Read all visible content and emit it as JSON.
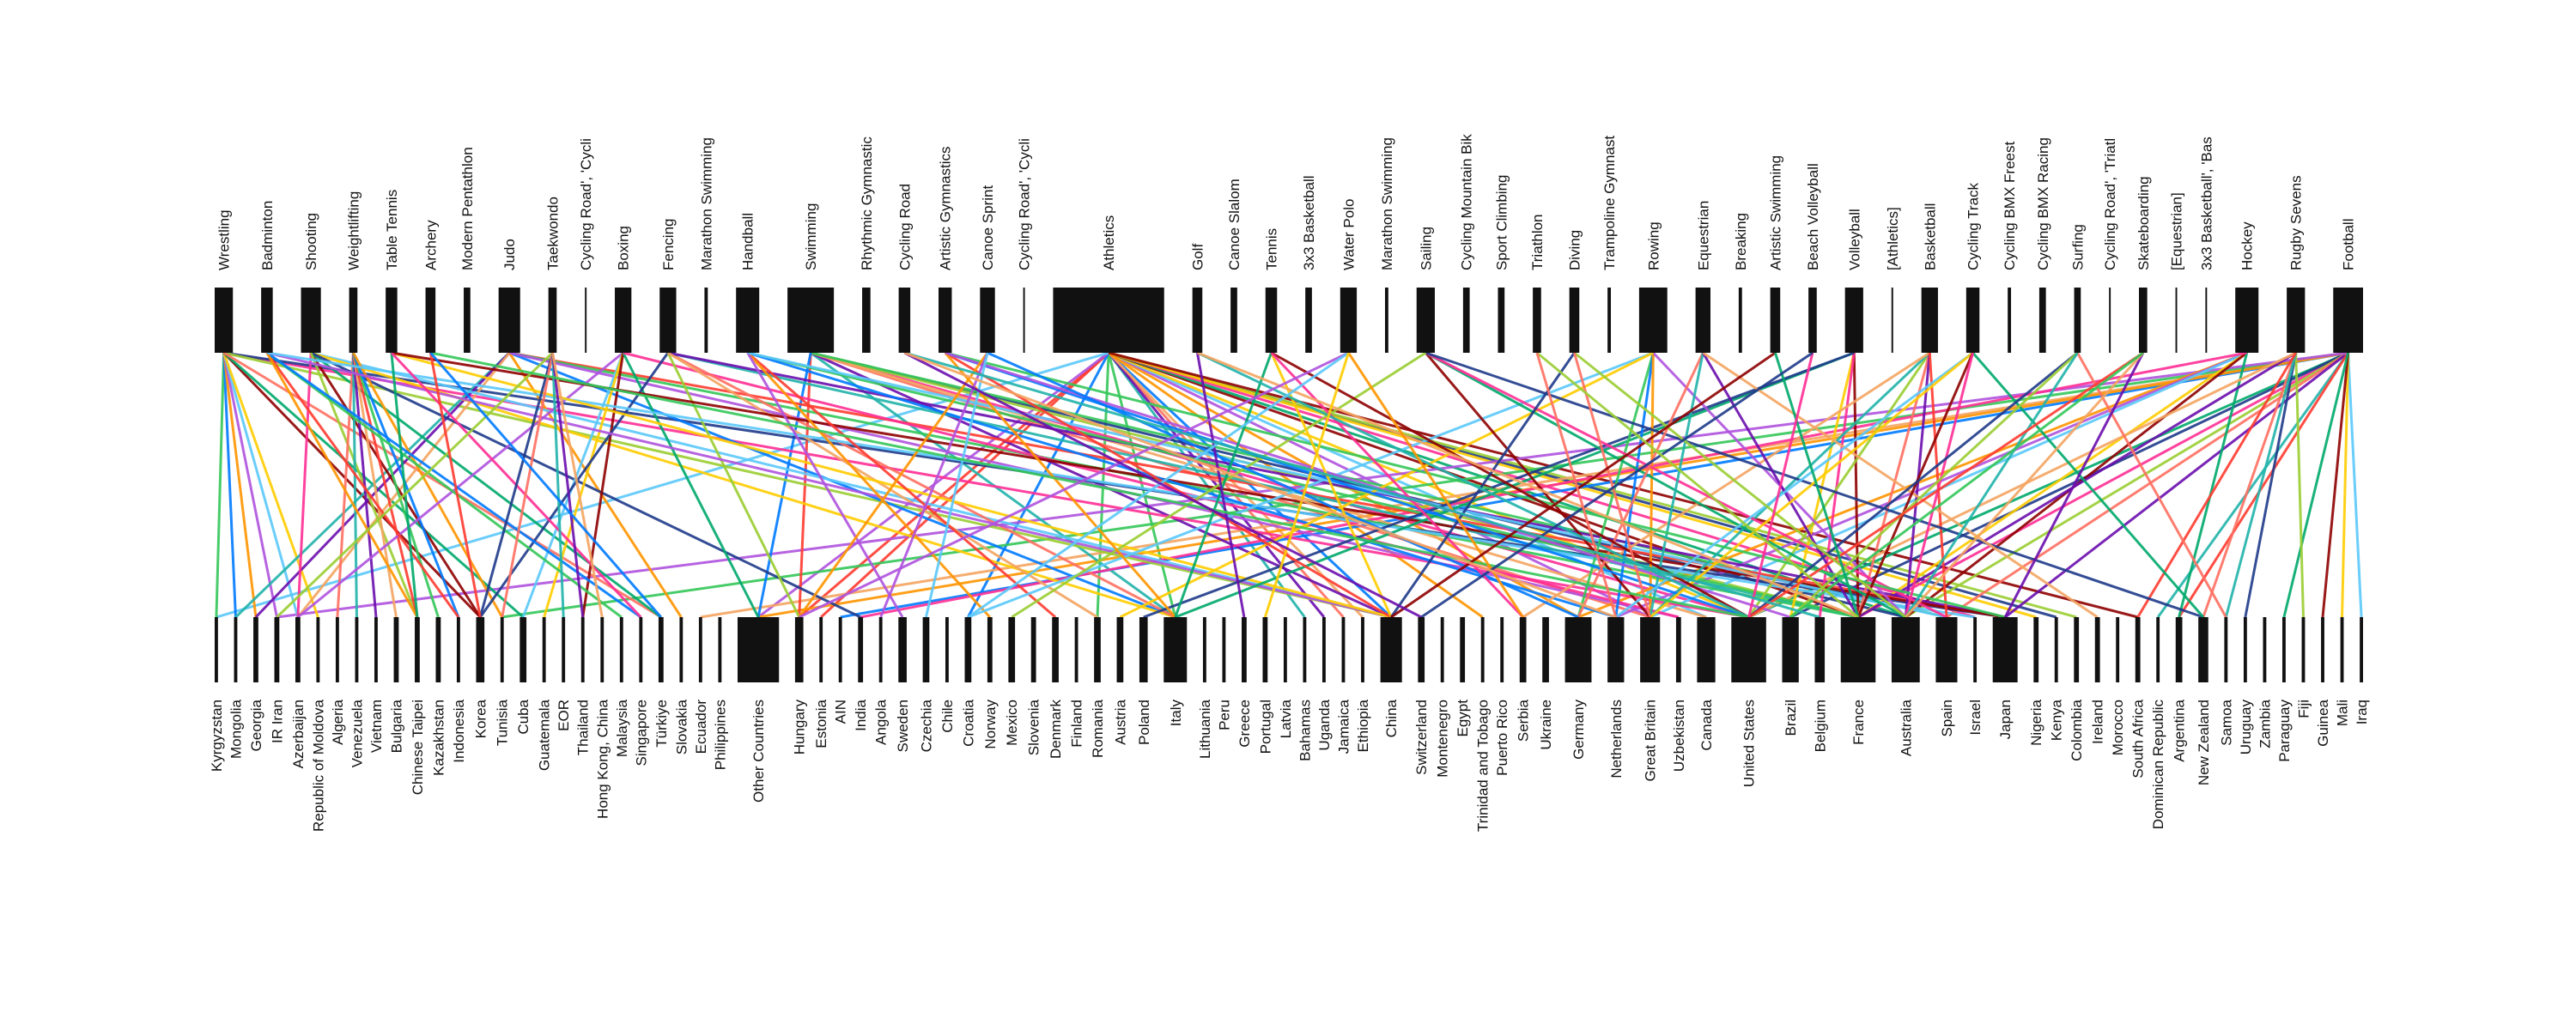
{
  "top_nodes": [
    {
      "label": "Wrestling",
      "size": 11
    },
    {
      "label": "Badminton",
      "size": 7
    },
    {
      "label": "Shooting",
      "size": 12
    },
    {
      "label": "Weightlifting",
      "size": 5
    },
    {
      "label": "Table Tennis",
      "size": 7
    },
    {
      "label": "Archery",
      "size": 6
    },
    {
      "label": "Modern Pentathlon",
      "size": 4
    },
    {
      "label": "Judo",
      "size": 13
    },
    {
      "label": "Taekwondo",
      "size": 5
    },
    {
      "label": "Cycling Road', 'Cycli",
      "size": 1
    },
    {
      "label": "Boxing",
      "size": 10
    },
    {
      "label": "Fencing",
      "size": 10
    },
    {
      "label": "Marathon Swimming",
      "size": 2
    },
    {
      "label": "Handball",
      "size": 14
    },
    {
      "label": "Swimming",
      "size": 28
    },
    {
      "label": "Rhythmic Gymnastic",
      "size": 5
    },
    {
      "label": "Cycling Road",
      "size": 7
    },
    {
      "label": "Artistic Gymnastics",
      "size": 8
    },
    {
      "label": "Canoe Sprint",
      "size": 9
    },
    {
      "label": "Cycling Road', 'Cycli",
      "size": 1
    },
    {
      "label": "Athletics",
      "size": 67
    },
    {
      "label": "Golf",
      "size": 6
    },
    {
      "label": "Canoe Slalom",
      "size": 4
    },
    {
      "label": "Tennis",
      "size": 7
    },
    {
      "label": "3x3 Basketball",
      "size": 4
    },
    {
      "label": "Water Polo",
      "size": 10
    },
    {
      "label": "Marathon Swimming",
      "size": 2
    },
    {
      "label": "Sailing",
      "size": 11
    },
    {
      "label": "Cycling Mountain Bik",
      "size": 4
    },
    {
      "label": "Sport Climbing",
      "size": 4
    },
    {
      "label": "Triathlon",
      "size": 5
    },
    {
      "label": "Diving",
      "size": 6
    },
    {
      "label": "Trampoline Gymnast",
      "size": 2
    },
    {
      "label": "Rowing",
      "size": 17
    },
    {
      "label": "Equestrian",
      "size": 9
    },
    {
      "label": "Breaking",
      "size": 2
    },
    {
      "label": "Artistic Swimming",
      "size": 6
    },
    {
      "label": "Beach Volleyball",
      "size": 5
    },
    {
      "label": "Volleyball",
      "size": 11
    },
    {
      "label": "[Athletics]",
      "size": 1
    },
    {
      "label": "Basketball",
      "size": 10
    },
    {
      "label": "Cycling Track",
      "size": 8
    },
    {
      "label": "Cycling BMX Freest",
      "size": 2
    },
    {
      "label": "Cycling BMX Racing",
      "size": 4
    },
    {
      "label": "Surfing",
      "size": 4
    },
    {
      "label": "Cycling Road', 'Triatl",
      "size": 1
    },
    {
      "label": "Skateboarding",
      "size": 5
    },
    {
      "label": "[Equestrian]",
      "size": 1
    },
    {
      "label": "3x3 Basketball', 'Bas",
      "size": 1
    },
    {
      "label": "Hockey",
      "size": 14
    },
    {
      "label": "Rugby Sevens",
      "size": 11
    },
    {
      "label": "Football",
      "size": 18
    }
  ],
  "bottom_nodes": [
    {
      "label": "Kyrgyzstan",
      "size": 2
    },
    {
      "label": "Mongolia",
      "size": 2
    },
    {
      "label": "Georgia",
      "size": 3
    },
    {
      "label": "IR Iran",
      "size": 3
    },
    {
      "label": "Azerbaijan",
      "size": 3
    },
    {
      "label": "Republic of Moldova",
      "size": 2
    },
    {
      "label": "Algeria",
      "size": 2
    },
    {
      "label": "Venezuela",
      "size": 2
    },
    {
      "label": "Vietnam",
      "size": 2
    },
    {
      "label": "Bulgaria",
      "size": 3
    },
    {
      "label": "Chinese Taipei",
      "size": 3
    },
    {
      "label": "Kazakhstan",
      "size": 3
    },
    {
      "label": "Indonesia",
      "size": 2
    },
    {
      "label": "Korea",
      "size": 5
    },
    {
      "label": "Tunisia",
      "size": 2
    },
    {
      "label": "Cuba",
      "size": 4
    },
    {
      "label": "Guatemala",
      "size": 2
    },
    {
      "label": "EOR",
      "size": 2
    },
    {
      "label": "Thailand",
      "size": 2
    },
    {
      "label": "Hong Kong, China",
      "size": 2
    },
    {
      "label": "Malaysia",
      "size": 2
    },
    {
      "label": "Singapore",
      "size": 2
    },
    {
      "label": "Türkiye",
      "size": 3
    },
    {
      "label": "Slovakia",
      "size": 2
    },
    {
      "label": "Ecuador",
      "size": 2
    },
    {
      "label": "Philippines",
      "size": 2
    },
    {
      "label": "Other Countries",
      "size": 25
    },
    {
      "label": "Hungary",
      "size": 5
    },
    {
      "label": "Estonia",
      "size": 2
    },
    {
      "label": "AIN",
      "size": 2
    },
    {
      "label": "India",
      "size": 3
    },
    {
      "label": "Angola",
      "size": 2
    },
    {
      "label": "Sweden",
      "size": 5
    },
    {
      "label": "Czechia",
      "size": 4
    },
    {
      "label": "Chile",
      "size": 2
    },
    {
      "label": "Croatia",
      "size": 4
    },
    {
      "label": "Norway",
      "size": 3
    },
    {
      "label": "Mexico",
      "size": 4
    },
    {
      "label": "Slovenia",
      "size": 3
    },
    {
      "label": "Denmark",
      "size": 4
    },
    {
      "label": "Finland",
      "size": 2
    },
    {
      "label": "Romania",
      "size": 4
    },
    {
      "label": "Austria",
      "size": 4
    },
    {
      "label": "Poland",
      "size": 5
    },
    {
      "label": "Italy",
      "size": 14
    },
    {
      "label": "Lithuania",
      "size": 2
    },
    {
      "label": "Peru",
      "size": 2
    },
    {
      "label": "Greece",
      "size": 3
    },
    {
      "label": "Portugal",
      "size": 3
    },
    {
      "label": "Latvia",
      "size": 2
    },
    {
      "label": "Bahamas",
      "size": 2
    },
    {
      "label": "Uganda",
      "size": 2
    },
    {
      "label": "Jamaica",
      "size": 2
    },
    {
      "label": "Ethiopia",
      "size": 2
    },
    {
      "label": "China",
      "size": 13
    },
    {
      "label": "Switzerland",
      "size": 4
    },
    {
      "label": "Montenegro",
      "size": 2
    },
    {
      "label": "Egypt",
      "size": 3
    },
    {
      "label": "Trinidad and Tobago",
      "size": 2
    },
    {
      "label": "Puerto Rico",
      "size": 2
    },
    {
      "label": "Serbia",
      "size": 4
    },
    {
      "label": "Ukraine",
      "size": 4
    },
    {
      "label": "Germany",
      "size": 16
    },
    {
      "label": "Netherlands",
      "size": 10
    },
    {
      "label": "Great Britain",
      "size": 12
    },
    {
      "label": "Uzbekistan",
      "size": 3
    },
    {
      "label": "Canada",
      "size": 11
    },
    {
      "label": "United States",
      "size": 21
    },
    {
      "label": "Brazil",
      "size": 10
    },
    {
      "label": "Belgium",
      "size": 6
    },
    {
      "label": "France",
      "size": 21
    },
    {
      "label": "Australia",
      "size": 17
    },
    {
      "label": "Spain",
      "size": 13
    },
    {
      "label": "Israel",
      "size": 2
    },
    {
      "label": "Japan",
      "size": 15
    },
    {
      "label": "Nigeria",
      "size": 3
    },
    {
      "label": "Kenya",
      "size": 2
    },
    {
      "label": "Colombia",
      "size": 3
    },
    {
      "label": "Ireland",
      "size": 3
    },
    {
      "label": "Morocco",
      "size": 2
    },
    {
      "label": "South Africa",
      "size": 3
    },
    {
      "label": "Dominican Republic",
      "size": 2
    },
    {
      "label": "Argentina",
      "size": 4
    },
    {
      "label": "New Zealand",
      "size": 6
    },
    {
      "label": "Samoa",
      "size": 2
    },
    {
      "label": "Uruguay",
      "size": 2
    },
    {
      "label": "Zambia",
      "size": 2
    },
    {
      "label": "Paraguay",
      "size": 2
    },
    {
      "label": "Fiji",
      "size": 2
    },
    {
      "label": "Guinea",
      "size": 2
    },
    {
      "label": "Mali",
      "size": 2
    },
    {
      "label": "Iraq",
      "size": 2
    }
  ],
  "node_color": "#111111",
  "link_colors": [
    "#ff3b30",
    "#34c759",
    "#007aff",
    "#ff9500",
    "#af52de",
    "#5ac8fa",
    "#ffcc00",
    "#8e0000",
    "#00a86b",
    "#ff2d95",
    "#1e3a8a",
    "#9acd32",
    "#ff6f61",
    "#20b2aa",
    "#6a0dad",
    "#f4a460"
  ],
  "links": [
    [
      20,
      27
    ],
    [
      20,
      44
    ],
    [
      20,
      54
    ],
    [
      20,
      62
    ],
    [
      20,
      64
    ],
    [
      20,
      66
    ],
    [
      20,
      67
    ],
    [
      20,
      70
    ],
    [
      20,
      71
    ],
    [
      20,
      73
    ],
    [
      20,
      76
    ],
    [
      20,
      77
    ],
    [
      20,
      52
    ],
    [
      20,
      50
    ],
    [
      20,
      51
    ],
    [
      20,
      53
    ],
    [
      20,
      28
    ],
    [
      20,
      41
    ],
    [
      20,
      35
    ],
    [
      20,
      58
    ],
    [
      20,
      26
    ],
    [
      20,
      0
    ],
    [
      20,
      75
    ],
    [
      20,
      80
    ],
    [
      51,
      67
    ],
    [
      51,
      70
    ],
    [
      51,
      68
    ],
    [
      51,
      71
    ],
    [
      51,
      72
    ],
    [
      51,
      81
    ],
    [
      51,
      74
    ],
    [
      51,
      24
    ],
    [
      51,
      82
    ],
    [
      51,
      14
    ],
    [
      51,
      29
    ],
    [
      51,
      26
    ],
    [
      51,
      3
    ],
    [
      51,
      91
    ],
    [
      51,
      90
    ],
    [
      51,
      89
    ],
    [
      51,
      87
    ],
    [
      14,
      67
    ],
    [
      14,
      71
    ],
    [
      14,
      70
    ],
    [
      14,
      64
    ],
    [
      14,
      44
    ],
    [
      14,
      54
    ],
    [
      14,
      66
    ],
    [
      14,
      27
    ],
    [
      14,
      72
    ],
    [
      14,
      26
    ],
    [
      49,
      62
    ],
    [
      49,
      63
    ],
    [
      49,
      64
    ],
    [
      49,
      70
    ],
    [
      49,
      71
    ],
    [
      49,
      82
    ],
    [
      49,
      30
    ],
    [
      50,
      85
    ],
    [
      50,
      88
    ],
    [
      50,
      83
    ],
    [
      50,
      84
    ],
    [
      50,
      70
    ],
    [
      50,
      67
    ],
    [
      50,
      80
    ],
    [
      0,
      0
    ],
    [
      0,
      1
    ],
    [
      0,
      2
    ],
    [
      0,
      3
    ],
    [
      0,
      4
    ],
    [
      0,
      5
    ],
    [
      0,
      13
    ],
    [
      0,
      15
    ],
    [
      0,
      67
    ],
    [
      0,
      74
    ],
    [
      0,
      54
    ],
    [
      0,
      22
    ],
    [
      7,
      1
    ],
    [
      7,
      2
    ],
    [
      7,
      4
    ],
    [
      7,
      74
    ],
    [
      7,
      70
    ],
    [
      7,
      44
    ],
    [
      7,
      23
    ],
    [
      7,
      65
    ],
    [
      2,
      54
    ],
    [
      2,
      44
    ],
    [
      2,
      13
    ],
    [
      2,
      22
    ],
    [
      2,
      4
    ],
    [
      2,
      30
    ],
    [
      2,
      10
    ],
    [
      3,
      6
    ],
    [
      3,
      7
    ],
    [
      3,
      8
    ],
    [
      3,
      9
    ],
    [
      3,
      10
    ],
    [
      3,
      11
    ],
    [
      3,
      12
    ],
    [
      3,
      14
    ],
    [
      10,
      4
    ],
    [
      10,
      15
    ],
    [
      10,
      16
    ],
    [
      10,
      18
    ],
    [
      10,
      26
    ],
    [
      10,
      65
    ],
    [
      11,
      13
    ],
    [
      11,
      27
    ],
    [
      11,
      44
    ],
    [
      11,
      70
    ],
    [
      11,
      74
    ],
    [
      11,
      41
    ],
    [
      1,
      12
    ],
    [
      1,
      20
    ],
    [
      1,
      21
    ],
    [
      1,
      10
    ],
    [
      1,
      54
    ],
    [
      1,
      73
    ],
    [
      4,
      54
    ],
    [
      4,
      74
    ],
    [
      4,
      10
    ],
    [
      4,
      21
    ],
    [
      8,
      13
    ],
    [
      8,
      3
    ],
    [
      8,
      14
    ],
    [
      8,
      17
    ],
    [
      8,
      18
    ],
    [
      8,
      19
    ],
    [
      13,
      39
    ],
    [
      13,
      70
    ],
    [
      13,
      63
    ],
    [
      13,
      36
    ],
    [
      13,
      32
    ],
    [
      13,
      72
    ],
    [
      38,
      68
    ],
    [
      38,
      70
    ],
    [
      38,
      44
    ],
    [
      38,
      69
    ],
    [
      38,
      43
    ],
    [
      40,
      67
    ],
    [
      40,
      70
    ],
    [
      40,
      64
    ],
    [
      40,
      71
    ],
    [
      40,
      60
    ],
    [
      40,
      72
    ],
    [
      33,
      62
    ],
    [
      33,
      63
    ],
    [
      33,
      64
    ],
    [
      33,
      71
    ],
    [
      33,
      35
    ],
    [
      33,
      42
    ],
    [
      27,
      64
    ],
    [
      27,
      71
    ],
    [
      27,
      72
    ],
    [
      27,
      83
    ],
    [
      27,
      37
    ],
    [
      34,
      62
    ],
    [
      34,
      64
    ],
    [
      34,
      70
    ],
    [
      34,
      78
    ],
    [
      17,
      54
    ],
    [
      17,
      74
    ],
    [
      17,
      67
    ],
    [
      17,
      44
    ],
    [
      17,
      68
    ],
    [
      41,
      63
    ],
    [
      41,
      64
    ],
    [
      41,
      70
    ],
    [
      41,
      83
    ],
    [
      41,
      71
    ],
    [
      44,
      67
    ],
    [
      44,
      68
    ],
    [
      44,
      84
    ],
    [
      44,
      71
    ],
    [
      46,
      74
    ],
    [
      46,
      71
    ],
    [
      46,
      67
    ],
    [
      46,
      68
    ],
    [
      18,
      62
    ],
    [
      18,
      27
    ],
    [
      18,
      31
    ],
    [
      18,
      33
    ],
    [
      23,
      54
    ],
    [
      23,
      67
    ],
    [
      23,
      44
    ],
    [
      23,
      60
    ],
    [
      31,
      54
    ],
    [
      31,
      71
    ],
    [
      31,
      64
    ],
    [
      21,
      67
    ],
    [
      21,
      47
    ],
    [
      21,
      70
    ],
    [
      5,
      13
    ],
    [
      5,
      67
    ],
    [
      5,
      22
    ],
    [
      25,
      60
    ],
    [
      25,
      27
    ],
    [
      25,
      35
    ],
    [
      25,
      48
    ],
    [
      36,
      54
    ],
    [
      36,
      70
    ],
    [
      37,
      67
    ],
    [
      37,
      55
    ],
    [
      30,
      70
    ],
    [
      30,
      63
    ],
    [
      16,
      69
    ],
    [
      16,
      55
    ],
    [
      16,
      63
    ]
  ]
}
